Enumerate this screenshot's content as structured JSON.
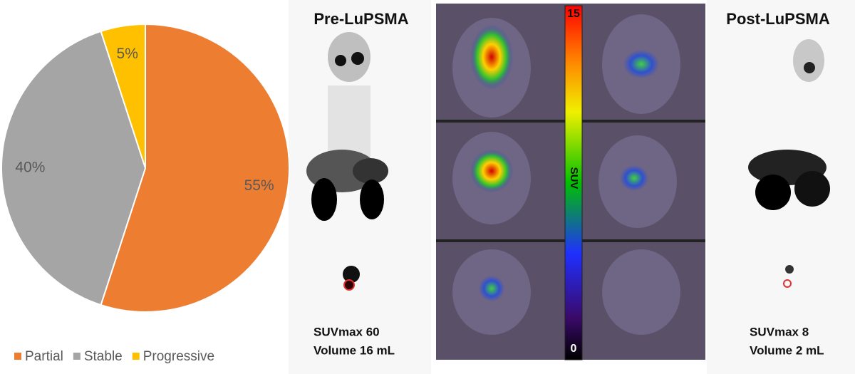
{
  "chart_data": {
    "type": "pie",
    "categories": [
      "Partial",
      "Stable",
      "Progressive"
    ],
    "values": [
      55,
      40,
      5
    ],
    "value_labels": [
      "55%",
      "40%",
      "5%"
    ],
    "colors": [
      "#ed7d31",
      "#a5a5a5",
      "#ffc000"
    ],
    "legend": "bottom"
  },
  "images": {
    "pre": {
      "title": "Pre-LuPSMA",
      "suvmax": "SUVmax 60",
      "volume": "Volume 16 mL"
    },
    "post": {
      "title": "Post-LuPSMA",
      "suvmax": "SUVmax 8",
      "volume": "Volume 2 mL"
    },
    "colorbar": {
      "label": "SUV",
      "clim": [
        0,
        15
      ],
      "ticks": [
        0,
        15
      ]
    }
  }
}
